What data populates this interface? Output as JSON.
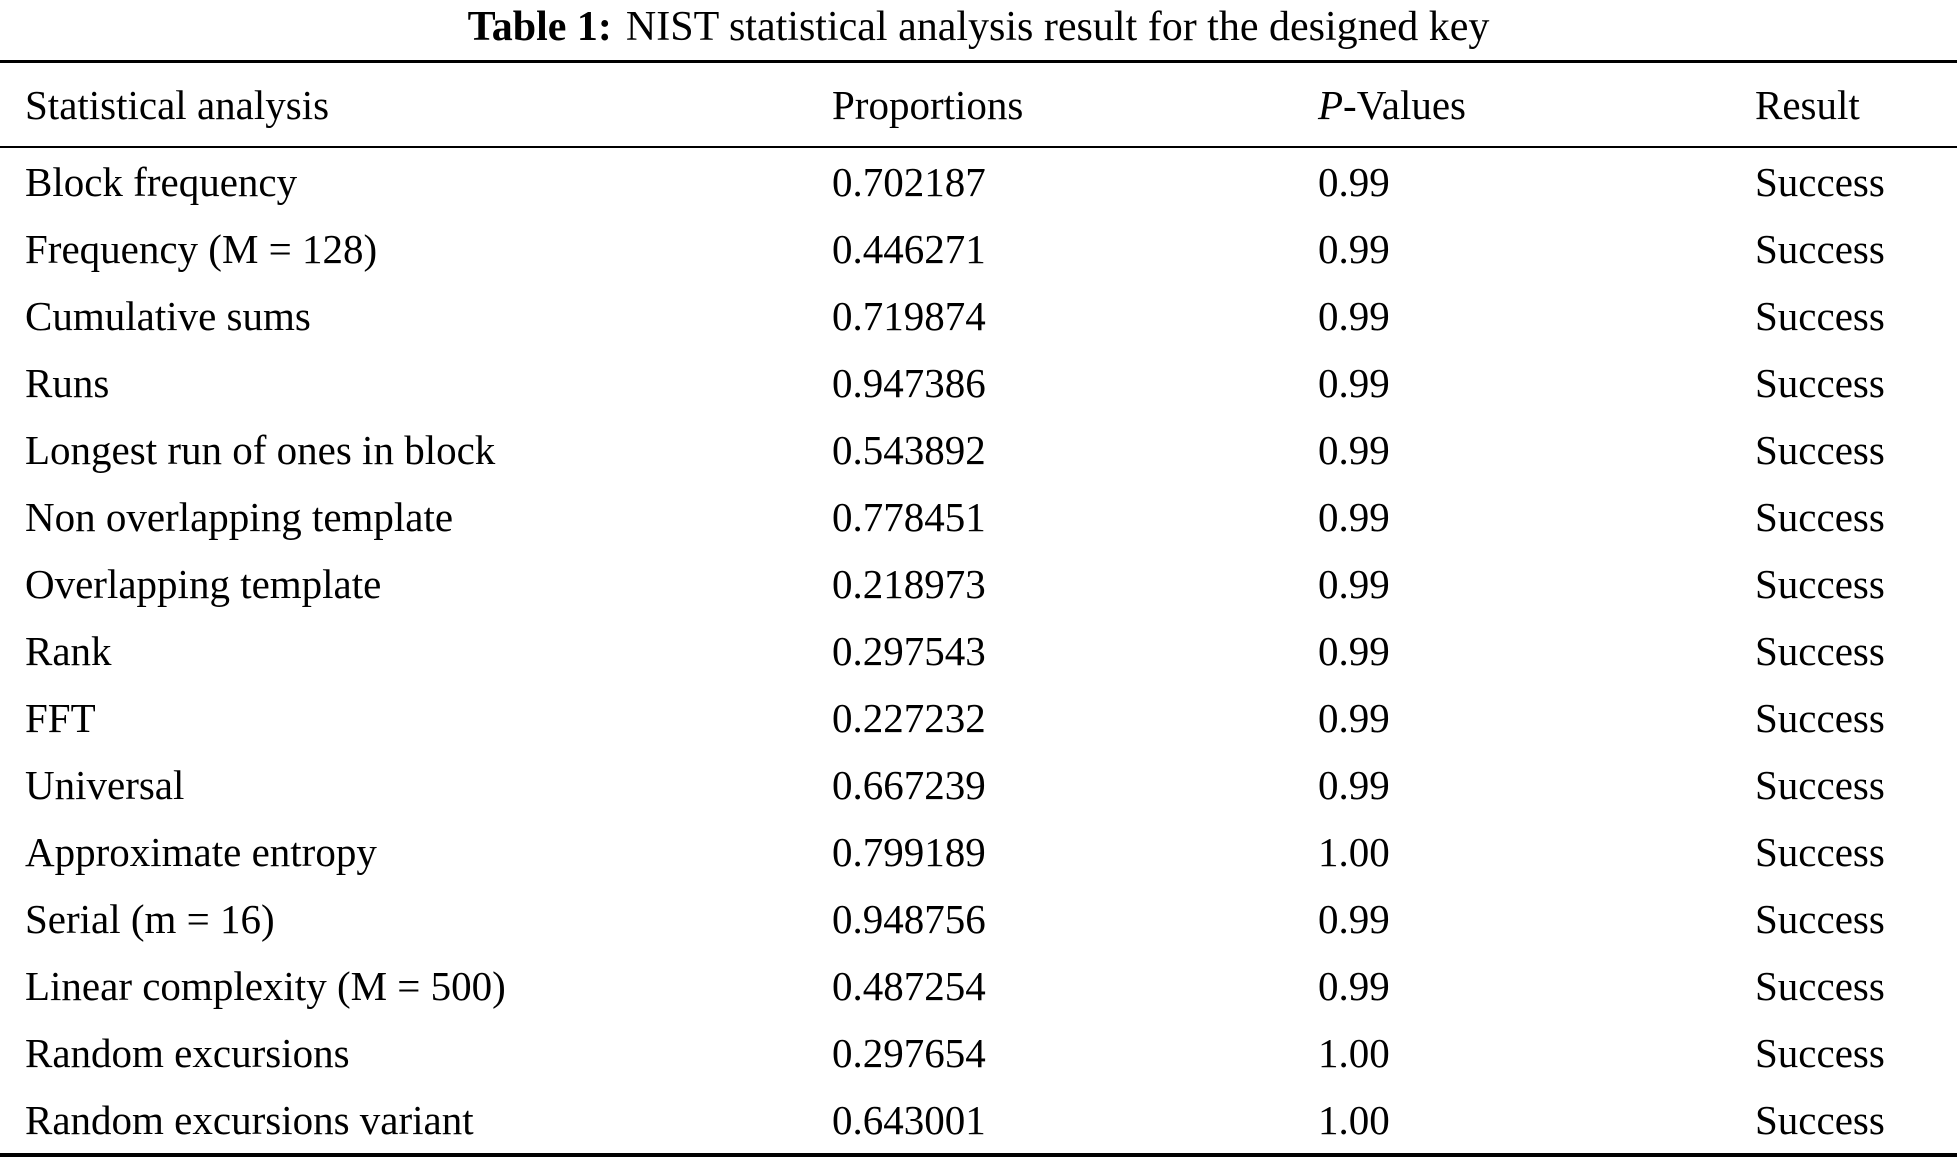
{
  "colors": {
    "text": "#000000",
    "background": "#ffffff"
  },
  "title": {
    "label": "Table 1:",
    "text": "NIST statistical analysis result for the designed key"
  },
  "table": {
    "headers": {
      "analysis": "Statistical analysis",
      "proportions": "Proportions",
      "p_italic": "P",
      "p_rest": "-Values",
      "result": "Result"
    },
    "rows": [
      {
        "analysis": "Block frequency",
        "proportion": "0.702187",
        "p_value": "0.99",
        "result": "Success"
      },
      {
        "analysis": "Frequency (M = 128)",
        "proportion": "0.446271",
        "p_value": "0.99",
        "result": "Success"
      },
      {
        "analysis": "Cumulative sums",
        "proportion": "0.719874",
        "p_value": "0.99",
        "result": "Success"
      },
      {
        "analysis": "Runs",
        "proportion": "0.947386",
        "p_value": "0.99",
        "result": "Success"
      },
      {
        "analysis": "Longest run of ones in block",
        "proportion": "0.543892",
        "p_value": "0.99",
        "result": "Success"
      },
      {
        "analysis": "Non overlapping template",
        "proportion": "0.778451",
        "p_value": "0.99",
        "result": "Success"
      },
      {
        "analysis": "Overlapping template",
        "proportion": "0.218973",
        "p_value": "0.99",
        "result": "Success"
      },
      {
        "analysis": "Rank",
        "proportion": "0.297543",
        "p_value": "0.99",
        "result": "Success"
      },
      {
        "analysis": "FFT",
        "proportion": "0.227232",
        "p_value": "0.99",
        "result": "Success"
      },
      {
        "analysis": "Universal",
        "proportion": "0.667239",
        "p_value": "0.99",
        "result": "Success"
      },
      {
        "analysis": "Approximate entropy",
        "proportion": "0.799189",
        "p_value": "1.00",
        "result": "Success"
      },
      {
        "analysis": "Serial (m = 16)",
        "proportion": "0.948756",
        "p_value": "0.99",
        "result": "Success"
      },
      {
        "analysis": "Linear complexity (M = 500)",
        "proportion": "0.487254",
        "p_value": "0.99",
        "result": "Success"
      },
      {
        "analysis": "Random excursions",
        "proportion": "0.297654",
        "p_value": "1.00",
        "result": "Success"
      },
      {
        "analysis": "Random excursions variant",
        "proportion": "0.643001",
        "p_value": "1.00",
        "result": "Success"
      }
    ]
  },
  "chart_data": {
    "type": "table",
    "title": "Table 1: NIST statistical analysis result for the designed key",
    "columns": [
      "Statistical analysis",
      "Proportions",
      "P-Values",
      "Result"
    ],
    "rows": [
      [
        "Block frequency",
        0.702187,
        0.99,
        "Success"
      ],
      [
        "Frequency (M = 128)",
        0.446271,
        0.99,
        "Success"
      ],
      [
        "Cumulative sums",
        0.719874,
        0.99,
        "Success"
      ],
      [
        "Runs",
        0.947386,
        0.99,
        "Success"
      ],
      [
        "Longest run of ones in block",
        0.543892,
        0.99,
        "Success"
      ],
      [
        "Non overlapping template",
        0.778451,
        0.99,
        "Success"
      ],
      [
        "Overlapping template",
        0.218973,
        0.99,
        "Success"
      ],
      [
        "Rank",
        0.297543,
        0.99,
        "Success"
      ],
      [
        "FFT",
        0.227232,
        0.99,
        "Success"
      ],
      [
        "Universal",
        0.667239,
        0.99,
        "Success"
      ],
      [
        "Approximate entropy",
        0.799189,
        1.0,
        "Success"
      ],
      [
        "Serial (m = 16)",
        0.948756,
        0.99,
        "Success"
      ],
      [
        "Linear complexity (M = 500)",
        0.487254,
        0.99,
        "Success"
      ],
      [
        "Random excursions",
        0.297654,
        1.0,
        "Success"
      ],
      [
        "Random excursions variant",
        0.643001,
        1.0,
        "Success"
      ]
    ]
  }
}
